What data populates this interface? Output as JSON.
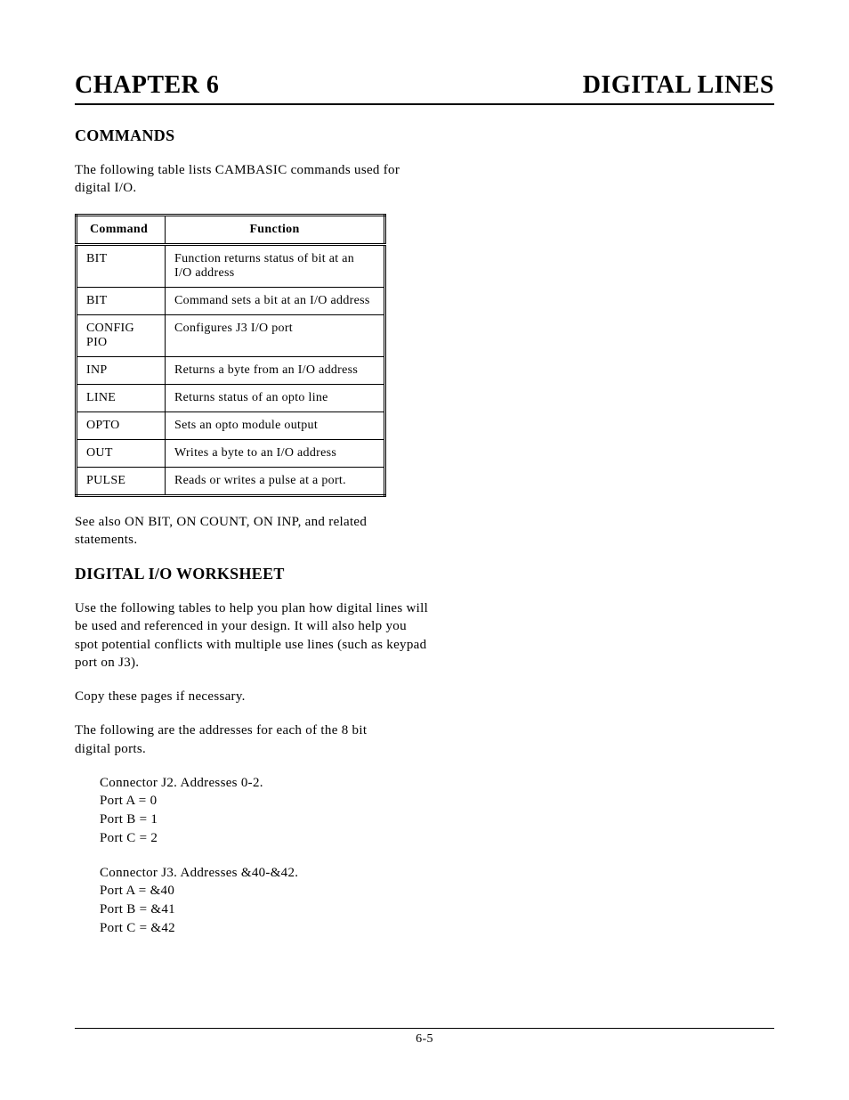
{
  "header": {
    "left": "CHAPTER 6",
    "right": "DIGITAL LINES"
  },
  "section_commands": {
    "heading": "COMMANDS",
    "intro": "The following table lists CAMBASIC commands used for digital I/O.",
    "table": {
      "headers": [
        "Command",
        "Function"
      ],
      "rows": [
        [
          "BIT",
          "Function returns status of bit at an I/O address"
        ],
        [
          "BIT",
          "Command sets a bit at an I/O address"
        ],
        [
          "CONFIG PIO",
          "Configures J3 I/O port"
        ],
        [
          "INP",
          "Returns a byte from an I/O address"
        ],
        [
          "LINE",
          "Returns status of an opto line"
        ],
        [
          "OPTO",
          "Sets an opto module output"
        ],
        [
          "OUT",
          "Writes a byte to an I/O address"
        ],
        [
          "PULSE",
          "Reads or writes a pulse at a port."
        ]
      ]
    },
    "see_also": "See also ON BIT, ON COUNT, ON INP, and related statements."
  },
  "section_worksheet": {
    "heading": "DIGITAL I/O WORKSHEET",
    "p1": "Use the following tables to help you plan how digital lines will be used and referenced in your design.  It will also help you spot potential conflicts with multiple use lines (such as keypad port on J3).",
    "p2": "Copy these pages if necessary.",
    "p3": "The following are the addresses for each of the 8 bit digital ports.",
    "addresses": {
      "j2": {
        "title": "Connector  J2.   Addresses 0-2.",
        "lines": [
          "Port A =  0",
          "Port B =  1",
          "Port C =  2"
        ]
      },
      "j3": {
        "title": "Connector J3.   Addresses &40-&42.",
        "lines": [
          "Port A =  &40",
          "Port B =  &41",
          "Port C =  &42"
        ]
      }
    }
  },
  "footer": {
    "page_no": "6-5"
  }
}
